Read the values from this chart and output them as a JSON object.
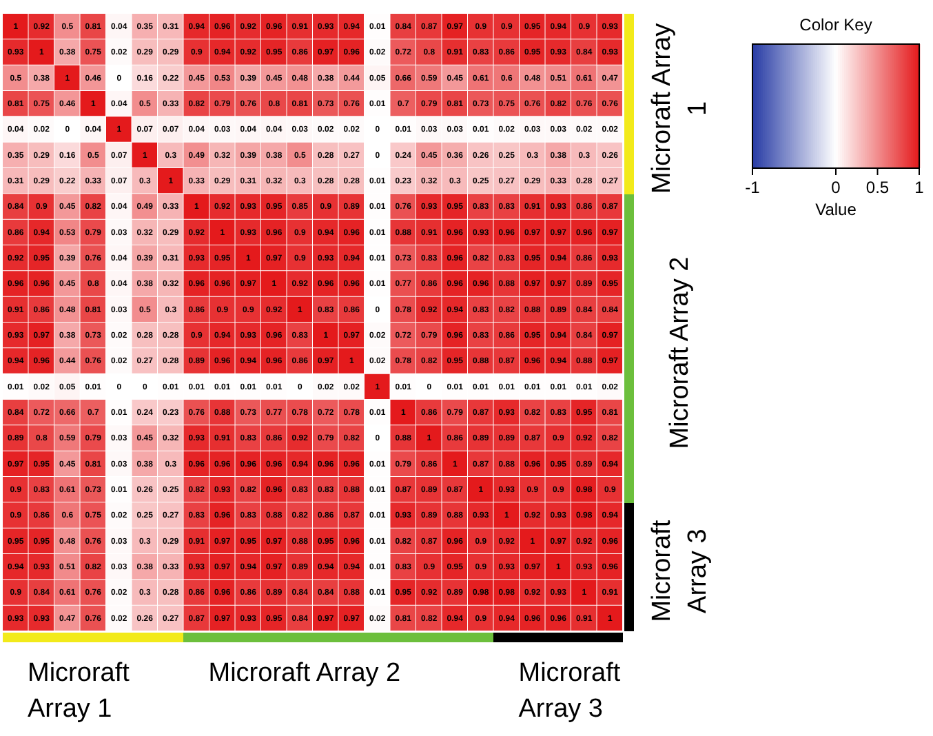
{
  "chart_data": {
    "type": "heatmap",
    "legend_title": "Color Key",
    "clabel": "Value",
    "clim": [
      -1,
      1
    ],
    "cticks": [
      -1,
      0,
      0.5,
      1
    ],
    "data_labels": true,
    "annotations": [
      "Microraft Array 1",
      "Microraft Array 2",
      "Microraft Array 3",
      "Microraft Array 1",
      "Microraft Array 2",
      "Microraft Array 3"
    ],
    "categories": [
      null,
      null,
      null,
      null,
      null,
      null,
      null,
      null,
      null,
      null,
      null,
      null,
      null,
      null,
      null,
      null,
      null,
      null,
      null,
      null,
      null,
      null,
      null,
      null
    ],
    "y_categories": [
      null,
      null,
      null,
      null,
      null,
      null,
      null,
      null,
      null,
      null,
      null,
      null,
      null,
      null,
      null,
      null,
      null,
      null,
      null,
      null,
      null,
      null,
      null,
      null
    ],
    "cells": [
      [
        1,
        0.92,
        0.5,
        0.81,
        0.04,
        0.35,
        0.31,
        0.94,
        0.96,
        0.92,
        0.96,
        0.91,
        0.93,
        0.94,
        0.01,
        0.84,
        0.87,
        0.97,
        0.9,
        0.9,
        0.95,
        0.94,
        0.9,
        0.93
      ],
      [
        0.93,
        1,
        0.38,
        0.75,
        0.02,
        0.29,
        0.29,
        0.9,
        0.94,
        0.92,
        0.95,
        0.86,
        0.97,
        0.96,
        0.02,
        0.72,
        0.8,
        0.91,
        0.83,
        0.86,
        0.95,
        0.93,
        0.84,
        0.93
      ],
      [
        0.5,
        0.38,
        1,
        0.46,
        0,
        0.16,
        0.22,
        0.45,
        0.53,
        0.39,
        0.45,
        0.48,
        0.38,
        0.44,
        0.05,
        0.66,
        0.59,
        0.45,
        0.61,
        0.6,
        0.48,
        0.51,
        0.61,
        0.47
      ],
      [
        0.81,
        0.75,
        0.46,
        1,
        0.04,
        0.5,
        0.33,
        0.82,
        0.79,
        0.76,
        0.8,
        0.81,
        0.73,
        0.76,
        0.01,
        0.7,
        0.79,
        0.81,
        0.73,
        0.75,
        0.76,
        0.82,
        0.76,
        0.76
      ],
      [
        0.04,
        0.02,
        0,
        0.04,
        1,
        0.07,
        0.07,
        0.04,
        0.03,
        0.04,
        0.04,
        0.03,
        0.02,
        0.02,
        0,
        0.01,
        0.03,
        0.03,
        0.01,
        0.02,
        0.03,
        0.03,
        0.02,
        0.02
      ],
      [
        0.35,
        0.29,
        0.16,
        0.5,
        0.07,
        1,
        0.3,
        0.49,
        0.32,
        0.39,
        0.38,
        0.5,
        0.28,
        0.27,
        0,
        0.24,
        0.45,
        0.36,
        0.26,
        0.25,
        0.3,
        0.38,
        0.3,
        0.26
      ],
      [
        0.31,
        0.29,
        0.22,
        0.33,
        0.07,
        0.3,
        1,
        0.33,
        0.29,
        0.31,
        0.32,
        0.3,
        0.28,
        0.28,
        0.01,
        0.23,
        0.32,
        0.3,
        0.25,
        0.27,
        0.29,
        0.33,
        0.28,
        0.27
      ],
      [
        0.84,
        0.9,
        0.45,
        0.82,
        0.04,
        0.49,
        0.33,
        1,
        0.92,
        0.93,
        0.95,
        0.85,
        0.9,
        0.89,
        0.01,
        0.76,
        0.93,
        0.95,
        0.83,
        0.83,
        0.91,
        0.93,
        0.86,
        0.87
      ],
      [
        0.86,
        0.94,
        0.53,
        0.79,
        0.03,
        0.32,
        0.29,
        0.92,
        1,
        0.93,
        0.96,
        0.9,
        0.94,
        0.96,
        0.01,
        0.88,
        0.91,
        0.96,
        0.93,
        0.96,
        0.97,
        0.97,
        0.96,
        0.97
      ],
      [
        0.92,
        0.95,
        0.39,
        0.76,
        0.04,
        0.39,
        0.31,
        0.93,
        0.95,
        1,
        0.97,
        0.9,
        0.93,
        0.94,
        0.01,
        0.73,
        0.83,
        0.96,
        0.82,
        0.83,
        0.95,
        0.94,
        0.86,
        0.93
      ],
      [
        0.96,
        0.96,
        0.45,
        0.8,
        0.04,
        0.38,
        0.32,
        0.96,
        0.96,
        0.97,
        1,
        0.92,
        0.96,
        0.96,
        0.01,
        0.77,
        0.86,
        0.96,
        0.96,
        0.88,
        0.97,
        0.97,
        0.89,
        0.95
      ],
      [
        0.91,
        0.86,
        0.48,
        0.81,
        0.03,
        0.5,
        0.3,
        0.86,
        0.9,
        0.9,
        0.92,
        1,
        0.83,
        0.86,
        0,
        0.78,
        0.92,
        0.94,
        0.83,
        0.82,
        0.88,
        0.89,
        0.84,
        0.84
      ],
      [
        0.93,
        0.97,
        0.38,
        0.73,
        0.02,
        0.28,
        0.28,
        0.9,
        0.94,
        0.93,
        0.96,
        0.83,
        1,
        0.97,
        0.02,
        0.72,
        0.79,
        0.96,
        0.83,
        0.86,
        0.95,
        0.94,
        0.84,
        0.97
      ],
      [
        0.94,
        0.96,
        0.44,
        0.76,
        0.02,
        0.27,
        0.28,
        0.89,
        0.96,
        0.94,
        0.96,
        0.86,
        0.97,
        1,
        0.02,
        0.78,
        0.82,
        0.95,
        0.88,
        0.87,
        0.96,
        0.94,
        0.88,
        0.97
      ],
      [
        0.01,
        0.02,
        0.05,
        0.01,
        0,
        0,
        0.01,
        0.01,
        0.01,
        0.01,
        0.01,
        0,
        0.02,
        0.02,
        1,
        0.01,
        0,
        0.01,
        0.01,
        0.01,
        0.01,
        0.01,
        0.01,
        0.02
      ],
      [
        0.84,
        0.72,
        0.66,
        0.7,
        0.01,
        0.24,
        0.23,
        0.76,
        0.88,
        0.73,
        0.77,
        0.78,
        0.72,
        0.78,
        0.01,
        1,
        0.86,
        0.79,
        0.87,
        0.93,
        0.82,
        0.83,
        0.95,
        0.81
      ],
      [
        0.89,
        0.8,
        0.59,
        0.79,
        0.03,
        0.45,
        0.32,
        0.93,
        0.91,
        0.83,
        0.86,
        0.92,
        0.79,
        0.82,
        0,
        0.88,
        1,
        0.86,
        0.89,
        0.89,
        0.87,
        0.9,
        0.92,
        0.82
      ],
      [
        0.97,
        0.95,
        0.45,
        0.81,
        0.03,
        0.38,
        0.3,
        0.96,
        0.96,
        0.96,
        0.96,
        0.94,
        0.96,
        0.96,
        0.01,
        0.79,
        0.86,
        1,
        0.87,
        0.88,
        0.96,
        0.95,
        0.89,
        0.94
      ],
      [
        0.9,
        0.83,
        0.61,
        0.73,
        0.01,
        0.26,
        0.25,
        0.82,
        0.93,
        0.82,
        0.96,
        0.83,
        0.83,
        0.88,
        0.01,
        0.87,
        0.89,
        0.87,
        1,
        0.93,
        0.9,
        0.9,
        0.98,
        0.9
      ],
      [
        0.9,
        0.86,
        0.6,
        0.75,
        0.02,
        0.25,
        0.27,
        0.83,
        0.96,
        0.83,
        0.88,
        0.82,
        0.86,
        0.87,
        0.01,
        0.93,
        0.89,
        0.88,
        0.93,
        1,
        0.92,
        0.93,
        0.98,
        0.94
      ],
      [
        0.95,
        0.95,
        0.48,
        0.76,
        0.03,
        0.3,
        0.29,
        0.91,
        0.97,
        0.95,
        0.97,
        0.88,
        0.95,
        0.96,
        0.01,
        0.82,
        0.87,
        0.96,
        0.9,
        0.92,
        1,
        0.97,
        0.92,
        0.96
      ],
      [
        0.94,
        0.93,
        0.51,
        0.82,
        0.03,
        0.38,
        0.33,
        0.93,
        0.97,
        0.94,
        0.97,
        0.89,
        0.94,
        0.94,
        0.01,
        0.83,
        0.9,
        0.95,
        0.9,
        0.93,
        0.97,
        1,
        0.93,
        0.96
      ],
      [
        0.9,
        0.84,
        0.61,
        0.76,
        0.02,
        0.3,
        0.28,
        0.86,
        0.96,
        0.86,
        0.89,
        0.84,
        0.84,
        0.88,
        0.01,
        0.95,
        0.92,
        0.89,
        0.98,
        0.98,
        0.92,
        0.93,
        1,
        0.91
      ],
      [
        0.93,
        0.93,
        0.47,
        0.76,
        0.02,
        0.26,
        0.27,
        0.87,
        0.97,
        0.93,
        0.95,
        0.84,
        0.97,
        0.97,
        0.02,
        0.81,
        0.82,
        0.94,
        0.9,
        0.94,
        0.96,
        0.96,
        0.91,
        1
      ]
    ]
  }
}
